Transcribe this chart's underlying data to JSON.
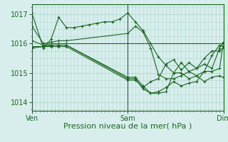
{
  "xlabel": "Pression niveau de la mer( hPa )",
  "bg_color": "#d8eeed",
  "line_color": "#1a6620",
  "grid_color": "#b0d8d0",
  "ylim": [
    1013.7,
    1017.35
  ],
  "yticks": [
    1014,
    1015,
    1016,
    1017
  ],
  "xtick_labels": [
    "Ven",
    "Sam",
    "Dim"
  ],
  "xtick_positions": [
    0.0,
    0.5,
    1.0
  ],
  "series": [
    [
      0.0,
      1017.05,
      0.06,
      1015.85,
      0.1,
      1016.15,
      0.14,
      1016.9,
      0.18,
      1016.55,
      0.22,
      1016.55,
      0.26,
      1016.6,
      0.3,
      1016.65,
      0.34,
      1016.7,
      0.38,
      1016.75,
      0.42,
      1016.75,
      0.46,
      1016.85,
      0.5,
      1017.05,
      0.54,
      1016.75,
      0.58,
      1016.45,
      0.62,
      1016.0,
      0.66,
      1015.55,
      0.7,
      1015.25,
      0.74,
      1015.0,
      0.78,
      1015.0,
      0.82,
      1014.8,
      0.86,
      1014.9,
      0.9,
      1015.05,
      0.94,
      1015.05,
      0.98,
      1015.15,
      1.0,
      1016.05
    ],
    [
      0.0,
      1016.6,
      0.06,
      1016.0,
      0.1,
      1016.05,
      0.14,
      1016.1,
      0.18,
      1016.1,
      0.5,
      1016.35,
      0.54,
      1016.6,
      0.58,
      1016.4,
      0.62,
      1015.85,
      0.66,
      1014.95,
      0.7,
      1014.8,
      0.74,
      1014.8,
      0.78,
      1014.9,
      0.82,
      1015.05,
      0.86,
      1015.15,
      0.9,
      1015.3,
      0.94,
      1015.15,
      0.98,
      1015.85,
      1.0,
      1016.05
    ],
    [
      0.0,
      1016.1,
      0.06,
      1015.95,
      0.1,
      1016.0,
      0.14,
      1016.0,
      0.18,
      1016.0,
      1.0,
      1016.0
    ],
    [
      0.0,
      1015.9,
      0.06,
      1015.9,
      0.1,
      1015.95,
      0.14,
      1015.95,
      0.18,
      1015.95,
      0.5,
      1014.85,
      0.54,
      1014.85,
      0.58,
      1014.55,
      0.62,
      1014.3,
      0.66,
      1014.3,
      0.7,
      1014.35,
      0.74,
      1015.0,
      0.78,
      1015.35,
      0.82,
      1015.05,
      0.86,
      1014.9,
      0.9,
      1014.7,
      0.94,
      1014.85,
      0.98,
      1014.9,
      1.0,
      1014.85
    ],
    [
      0.0,
      1015.9,
      0.06,
      1015.9,
      0.1,
      1015.95,
      0.14,
      1015.95,
      0.18,
      1015.95,
      0.5,
      1014.8,
      0.54,
      1014.8,
      0.58,
      1014.45,
      0.62,
      1014.3,
      0.66,
      1014.35,
      0.7,
      1014.5,
      0.74,
      1014.7,
      0.78,
      1014.55,
      0.82,
      1014.65,
      0.86,
      1014.7,
      0.9,
      1015.05,
      0.94,
      1015.6,
      0.98,
      1015.95,
      1.0,
      1015.9
    ],
    [
      0.0,
      1015.85,
      0.06,
      1015.9,
      0.1,
      1015.9,
      0.14,
      1015.9,
      0.18,
      1015.9,
      0.5,
      1014.75,
      0.54,
      1014.75,
      0.58,
      1014.5,
      0.62,
      1014.7,
      0.66,
      1014.8,
      0.7,
      1015.3,
      0.74,
      1015.45,
      0.78,
      1015.1,
      0.82,
      1015.35,
      0.86,
      1015.15,
      0.9,
      1015.5,
      0.94,
      1015.75,
      0.98,
      1015.75,
      1.0,
      1015.85
    ]
  ]
}
